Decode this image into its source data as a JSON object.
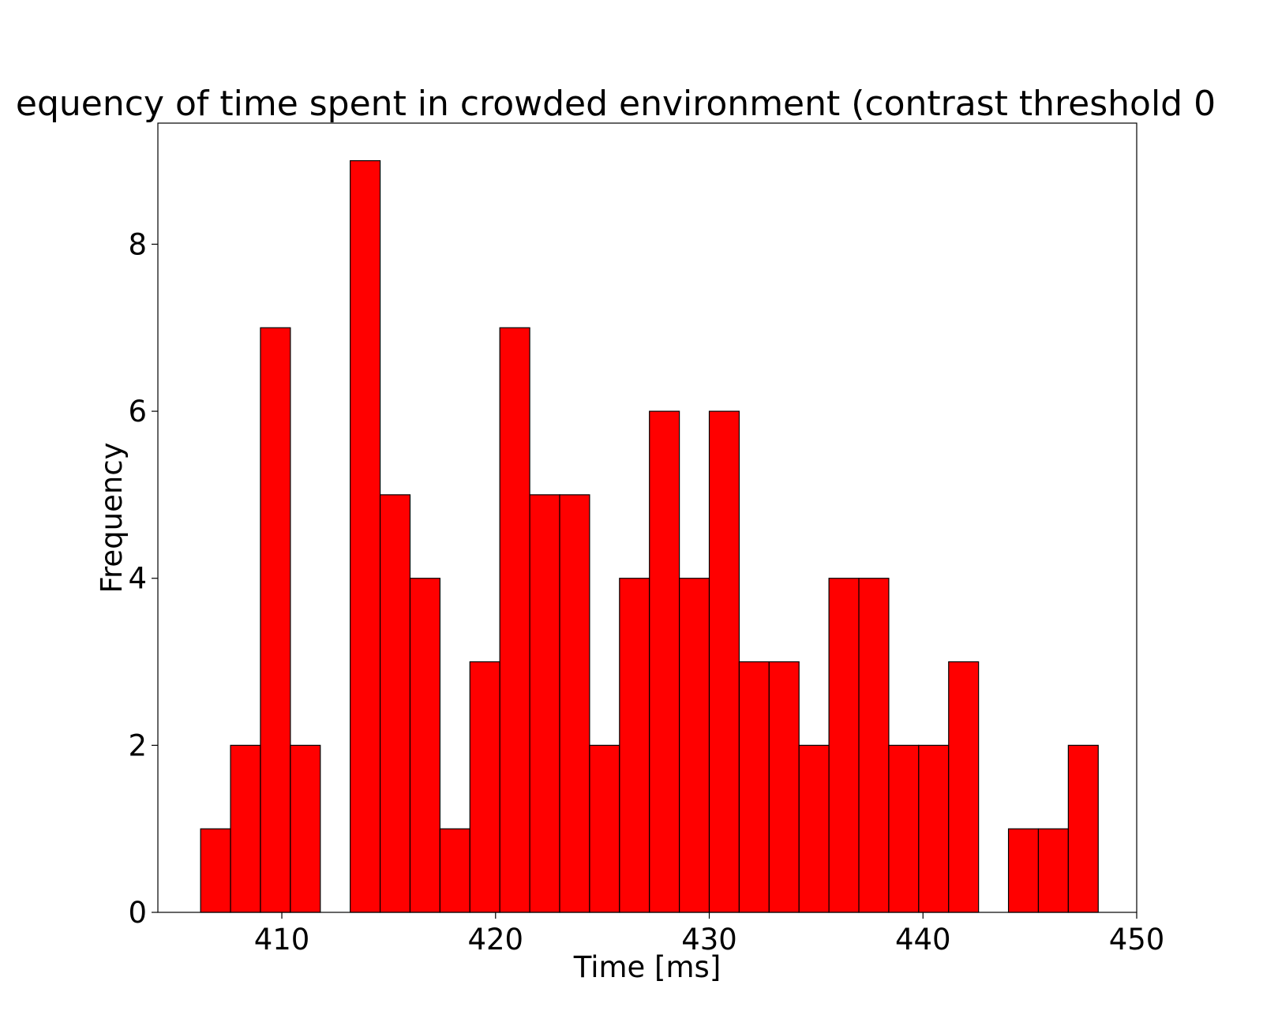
{
  "chart_data": {
    "type": "bar",
    "title": "equency of time spent in crowded environment (contrast threshold 0",
    "xlabel": "Time [ms]",
    "ylabel": "Frequency",
    "xlim": [
      404.2,
      450.0
    ],
    "ylim": [
      0,
      9.45
    ],
    "x_ticks": [
      410,
      420,
      430,
      440,
      450
    ],
    "y_ticks": [
      0,
      2,
      4,
      6,
      8
    ],
    "bar_color": "#ff0000",
    "edge_color": "#000000",
    "bin_edges": [
      406.2,
      407.6,
      409.0,
      410.4,
      411.8,
      413.2,
      414.6,
      416.0,
      417.4,
      418.8,
      420.2,
      421.6,
      423.0,
      424.4,
      425.8,
      427.2,
      428.6,
      430.0,
      431.4,
      432.8,
      434.2,
      435.6,
      437.0,
      438.4,
      439.8,
      441.2,
      442.6,
      444.0,
      445.4,
      446.8,
      448.2
    ],
    "values": [
      1,
      2,
      7,
      2,
      0,
      9,
      5,
      4,
      1,
      3,
      7,
      5,
      5,
      2,
      4,
      6,
      4,
      6,
      3,
      3,
      2,
      4,
      4,
      2,
      2,
      3,
      0,
      1,
      1,
      2
    ],
    "grid": false,
    "legend": "none"
  }
}
